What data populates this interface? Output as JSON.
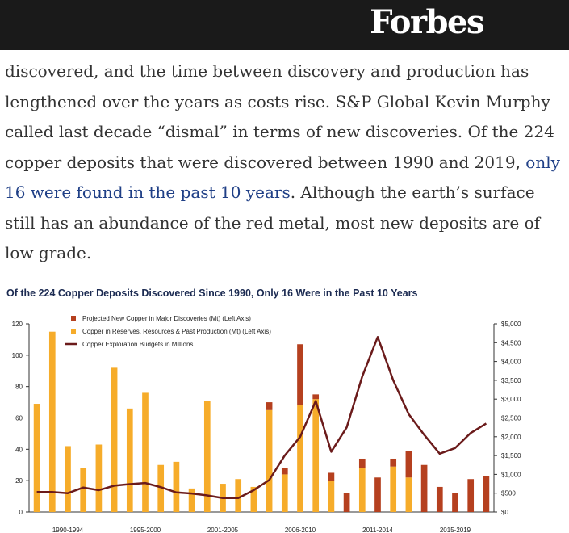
{
  "header": {
    "logo": "Forbes"
  },
  "article": {
    "before_link": "discovered, and the time between discovery and production has lengthened over the years as costs rise. S&P Global Kevin Murphy called last decade “dismal” in terms of new discoveries. Of the 224 copper deposits that were discovered between 1990 and 2019, ",
    "link_text": "only 16 were found in the past 10 years",
    "after_link": ". Although the earth’s surface still has an abundance of the red metal, most new deposits are of low grade."
  },
  "colors": {
    "projected": "#b5401f",
    "reserves": "#f6ac2a",
    "budget": "#6b1b1b"
  },
  "chart_data": {
    "type": "bar",
    "title": "Of the 224 Copper Deposits Discovered Since 1990, Only 16 Were in the Past 10 Years",
    "years": [
      1990,
      1991,
      1992,
      1993,
      1994,
      1995,
      1996,
      1997,
      1998,
      1999,
      2000,
      2001,
      2002,
      2003,
      2004,
      2005,
      2006,
      2007,
      2008,
      2009,
      2010,
      2011,
      2012,
      2013,
      2014,
      2015,
      2016,
      2017,
      2018,
      2019
    ],
    "x_tick_labels": [
      "1990-1994",
      "1995-2000",
      "2001-2005",
      "2006-2010",
      "2011-2014",
      "2015-2019"
    ],
    "x_tick_years": [
      1992,
      1997,
      2002,
      2007,
      2012,
      2017
    ],
    "series": [
      {
        "name": "Copper in Reserves, Resources & Past Production (Mt) (Left Axis)",
        "axis": "left",
        "values": [
          69,
          115,
          42,
          28,
          43,
          92,
          66,
          76,
          30,
          32,
          15,
          71,
          18,
          21,
          16,
          65,
          24,
          68,
          72,
          20,
          0,
          28,
          0,
          29,
          22,
          0,
          0,
          0,
          0,
          0
        ]
      },
      {
        "name": "Projected New Copper in Major Discoveries (Mt) (Left Axis)",
        "axis": "left",
        "values": [
          0,
          0,
          0,
          0,
          0,
          0,
          0,
          0,
          0,
          0,
          0,
          0,
          0,
          0,
          0,
          5,
          4,
          39,
          3,
          5,
          12,
          6,
          22,
          5,
          17,
          30,
          16,
          12,
          21,
          23
        ]
      },
      {
        "name": "Copper Exploration Budgets in Millions",
        "axis": "right",
        "values": [
          530,
          530,
          500,
          650,
          580,
          700,
          740,
          770,
          660,
          520,
          490,
          440,
          370,
          370,
          580,
          850,
          1500,
          2000,
          2950,
          1600,
          2250,
          3600,
          4650,
          3500,
          2600,
          2050,
          1550,
          1700,
          2100,
          2350
        ]
      }
    ],
    "left_axis": {
      "ylim": [
        0,
        120
      ],
      "ticks": [
        0,
        20,
        40,
        60,
        80,
        100,
        120
      ]
    },
    "right_axis": {
      "ylim": [
        0,
        5000
      ],
      "ticks": [
        "$0",
        "$500",
        "$1,000",
        "$1,500",
        "$2,000",
        "$2,500",
        "$3,000",
        "$3,500",
        "$4,000",
        "$4,500",
        "$5,000"
      ]
    },
    "legend_position": "top-left",
    "grid": false
  }
}
